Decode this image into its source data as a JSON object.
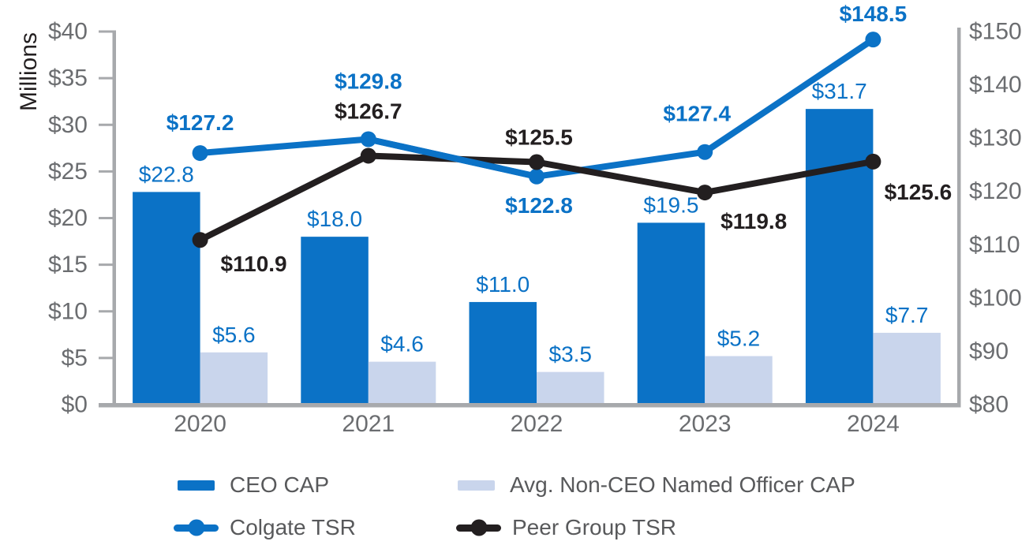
{
  "chart_data": {
    "type": "combo-bar-line",
    "categories": [
      "2020",
      "2021",
      "2022",
      "2023",
      "2024"
    ],
    "left_axis": {
      "title": "Millions",
      "min": 0,
      "max": 40,
      "tick_step": 5,
      "tick_labels": [
        "$40",
        "$35",
        "$30",
        "$25",
        "$20",
        "$15",
        "$10",
        "$5",
        "$0"
      ]
    },
    "right_axis": {
      "min": 80,
      "max": 150,
      "tick_step": 10,
      "tick_labels": [
        "$150",
        "$140",
        "$130",
        "$120",
        "$110",
        "$100",
        "$90",
        "$80"
      ]
    },
    "bar_series": [
      {
        "name": "CEO CAP",
        "axis": "left",
        "color": "#0b72c6",
        "values": [
          22.8,
          18.0,
          11.0,
          19.5,
          31.7
        ],
        "labels": [
          "$22.8",
          "$18.0",
          "$11.0",
          "$19.5",
          "$31.7"
        ]
      },
      {
        "name": "Avg. Non-CEO Named Officer CAP",
        "axis": "left",
        "color": "#c9d5ec",
        "values": [
          5.6,
          4.6,
          3.5,
          5.2,
          7.7
        ],
        "labels": [
          "$5.6",
          "$4.6",
          "$3.5",
          "$5.2",
          "$7.7"
        ]
      }
    ],
    "line_series": [
      {
        "name": "Colgate TSR",
        "axis": "right",
        "color": "#0b72c6",
        "values": [
          127.2,
          129.8,
          122.8,
          127.4,
          148.5
        ],
        "labels": [
          "$127.2",
          "$129.8",
          "$122.8",
          "$127.4",
          "$148.5"
        ]
      },
      {
        "name": "Peer Group TSR",
        "axis": "right",
        "color": "#231f20",
        "values": [
          110.9,
          126.7,
          125.5,
          119.8,
          125.6
        ],
        "labels": [
          "$110.9",
          "$126.7",
          "$125.5",
          "$119.8",
          "$125.6"
        ]
      }
    ],
    "grid": false,
    "legend_position": "bottom"
  },
  "legend": {
    "items": [
      {
        "label": "CEO CAP",
        "type": "bar",
        "color": "#0b72c6"
      },
      {
        "label": "Avg. Non-CEO Named Officer CAP",
        "type": "bar",
        "color": "#c9d5ec"
      },
      {
        "label": "Colgate TSR",
        "type": "line",
        "color": "#0b72c6"
      },
      {
        "label": "Peer Group TSR",
        "type": "line",
        "color": "#231f20"
      }
    ]
  },
  "colors": {
    "brand_blue": "#0b72c6",
    "light_blue": "#c9d5ec",
    "black": "#231f20",
    "axis_line": "#a7a9ac",
    "tick_text": "#6b6d70",
    "legend_text": "#58595b"
  }
}
